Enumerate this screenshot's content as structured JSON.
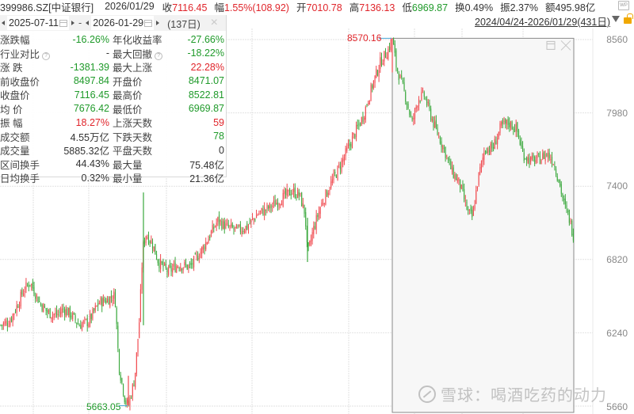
{
  "header": {
    "code": "399986.SZ[中证银行]",
    "date": "2026/01/29",
    "close_label": "收",
    "close_value": "7116.45",
    "change_label": "幅",
    "change_value": "1.55%(108.92)",
    "open_label": "开",
    "open_value": "7010.78",
    "high_label": "高",
    "high_value": "7136.13",
    "low_label": "低",
    "low_value": "6969.87",
    "turnover_label": "换",
    "turnover_value": "0.49%",
    "amplitude_label": "振",
    "amplitude_value": "2.37%",
    "amount_label": "额",
    "amount_value": "495.98亿",
    "wp_icon": "WP",
    "range_text": "2024/04/24-2026/01/29(431日)"
  },
  "stats": {
    "start_date": "2025-07-11",
    "end_date": "2026-01-29",
    "dash": "-",
    "days": "(137日)",
    "close_icon": "×",
    "rows": [
      {
        "l1": "涨跌幅",
        "v1": "-16.26%",
        "c1": "green",
        "l2": "年化收益率",
        "v2": "-27.66%",
        "c2": "green"
      },
      {
        "l1": "行业对比",
        "q1": true,
        "v1": "-",
        "c1": "dark",
        "l2": "最大回撤",
        "q2": true,
        "v2": "-18.22%",
        "c2": "green"
      },
      {
        "l1": "涨  跌",
        "v1": "-1381.39",
        "c1": "green",
        "l2": "最大上涨",
        "v2": "22.28%",
        "c2": "red"
      },
      {
        "l1": "前收盘价",
        "v1": "8497.84",
        "c1": "green",
        "l2": "开盘价",
        "v2": "8471.07",
        "c2": "green"
      },
      {
        "l1": "收盘价",
        "v1": "7116.45",
        "c1": "green",
        "l2": "最高价",
        "v2": "8522.81",
        "c2": "green"
      },
      {
        "l1": "均  价",
        "v1": "7676.42",
        "c1": "green",
        "l2": "最低价",
        "v2": "6969.87",
        "c2": "green"
      },
      {
        "l1": "振  幅",
        "v1": "18.27%",
        "c1": "red",
        "l2": "上涨天数",
        "v2": "59",
        "c2": "red"
      },
      {
        "l1": "成交额",
        "v1": "4.55万亿",
        "c1": "dark",
        "l2": "下跌天数",
        "v2": "78",
        "c2": "green"
      },
      {
        "l1": "成交量",
        "v1": "5885.32亿",
        "c1": "dark",
        "l2": "平盘天数",
        "v2": "0",
        "c2": "dark"
      },
      {
        "l1": "区间换手",
        "v1": "44.43%",
        "c1": "dark",
        "l2": "最大量",
        "v2": "75.48亿",
        "c2": "dark"
      },
      {
        "l1": "日均换手",
        "v1": "0.32%",
        "c1": "dark",
        "l2": "最小量",
        "v2": "21.36亿",
        "c2": "dark"
      }
    ]
  },
  "watermark": "雪球：喝酒吃药的动力",
  "colors": {
    "up": "#f0484e",
    "down": "#3aa83c",
    "grid": "#e2e2e2",
    "selection_border": "#8a8a8a",
    "selection_fill": "#f7f7f7",
    "annot_arrow": "#4aa8d8"
  },
  "chart_data": {
    "type": "candlestick",
    "title": "399986.SZ 中证银行 日K",
    "period": "2024/04/24-2026/01/29 (431日)",
    "yticks": [
      8560,
      7980,
      7400,
      6820,
      6240,
      5660
    ],
    "ylim": [
      5620,
      8640
    ],
    "high_annotation": {
      "value": "8570.16",
      "color": "#e0252b"
    },
    "low_annotation": {
      "value": "5663.05",
      "color": "#1f9a2a"
    },
    "selection_range": {
      "start": "2025-07-11",
      "end": "2026-01-29",
      "days": 137
    },
    "path_waypoints": [
      [
        0,
        6300
      ],
      [
        12,
        6330
      ],
      [
        22,
        6460
      ],
      [
        30,
        6580
      ],
      [
        38,
        6640
      ],
      [
        50,
        6480
      ],
      [
        60,
        6400
      ],
      [
        72,
        6380
      ],
      [
        80,
        6430
      ],
      [
        90,
        6380
      ],
      [
        100,
        6300
      ],
      [
        112,
        6330
      ],
      [
        125,
        6480
      ],
      [
        135,
        6500
      ],
      [
        145,
        6540
      ],
      [
        150,
        5980
      ],
      [
        158,
        5700
      ],
      [
        162,
        5663
      ],
      [
        170,
        5880
      ],
      [
        176,
        6350
      ],
      [
        180,
        6900
      ],
      [
        184,
        7020
      ],
      [
        192,
        6950
      ],
      [
        200,
        6800
      ],
      [
        212,
        6720
      ],
      [
        225,
        6780
      ],
      [
        240,
        6760
      ],
      [
        255,
        6900
      ],
      [
        262,
        6980
      ],
      [
        275,
        7130
      ],
      [
        285,
        7080
      ],
      [
        300,
        7050
      ],
      [
        312,
        7080
      ],
      [
        325,
        7180
      ],
      [
        340,
        7230
      ],
      [
        355,
        7300
      ],
      [
        368,
        7360
      ],
      [
        378,
        7330
      ],
      [
        385,
        7180
      ],
      [
        388,
        6850
      ],
      [
        395,
        7050
      ],
      [
        405,
        7250
      ],
      [
        420,
        7450
      ],
      [
        432,
        7600
      ],
      [
        445,
        7780
      ],
      [
        458,
        7950
      ],
      [
        470,
        8200
      ],
      [
        480,
        8380
      ],
      [
        490,
        8480
      ],
      [
        495,
        8570
      ],
      [
        500,
        8350
      ],
      [
        510,
        8150
      ],
      [
        520,
        7900
      ],
      [
        528,
        8100
      ],
      [
        535,
        8120
      ],
      [
        548,
        7880
      ],
      [
        560,
        7700
      ],
      [
        570,
        7520
      ],
      [
        580,
        7420
      ],
      [
        590,
        7200
      ],
      [
        596,
        7150
      ],
      [
        603,
        7450
      ],
      [
        612,
        7700
      ],
      [
        622,
        7700
      ],
      [
        632,
        7870
      ],
      [
        642,
        7900
      ],
      [
        652,
        7850
      ],
      [
        660,
        7650
      ],
      [
        670,
        7600
      ],
      [
        680,
        7610
      ],
      [
        690,
        7660
      ],
      [
        698,
        7600
      ],
      [
        705,
        7450
      ],
      [
        712,
        7250
      ],
      [
        718,
        7150
      ],
      [
        724,
        7000
      ]
    ]
  }
}
